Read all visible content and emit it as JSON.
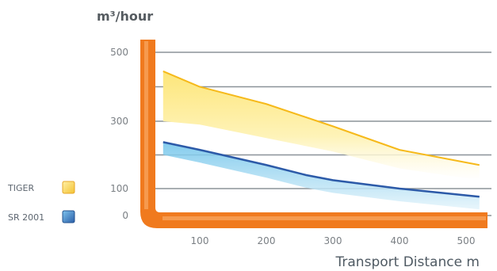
{
  "chart_data": {
    "type": "area",
    "title": "",
    "ylabel": "m³/hour",
    "xlabel": "Transport Distance  m",
    "x_ticks": [
      100,
      200,
      300,
      400,
      500
    ],
    "y_ticks": [
      0,
      100,
      300,
      500
    ],
    "legend_position": "left",
    "grid": true,
    "series": [
      {
        "name": "TIGER",
        "kind": "band",
        "color": "#f6b91a",
        "fill": "#fde987",
        "x": [
          45,
          100,
          200,
          300,
          400,
          520
        ],
        "upper": [
          445,
          400,
          350,
          285,
          215,
          170
        ],
        "lower": [
          300,
          290,
          250,
          210,
          160,
          125
        ]
      },
      {
        "name": "SR 2001",
        "kind": "line",
        "color": "#2c5aa8",
        "fill": "#8fcfee",
        "x": [
          45,
          100,
          200,
          260,
          300,
          400,
          520
        ],
        "values": [
          238,
          215,
          170,
          140,
          125,
          100,
          70
        ]
      }
    ]
  },
  "colors": {
    "axis": "#f07a1e",
    "axis_highlight": "#f7a35c",
    "grid": "#8b9399"
  }
}
